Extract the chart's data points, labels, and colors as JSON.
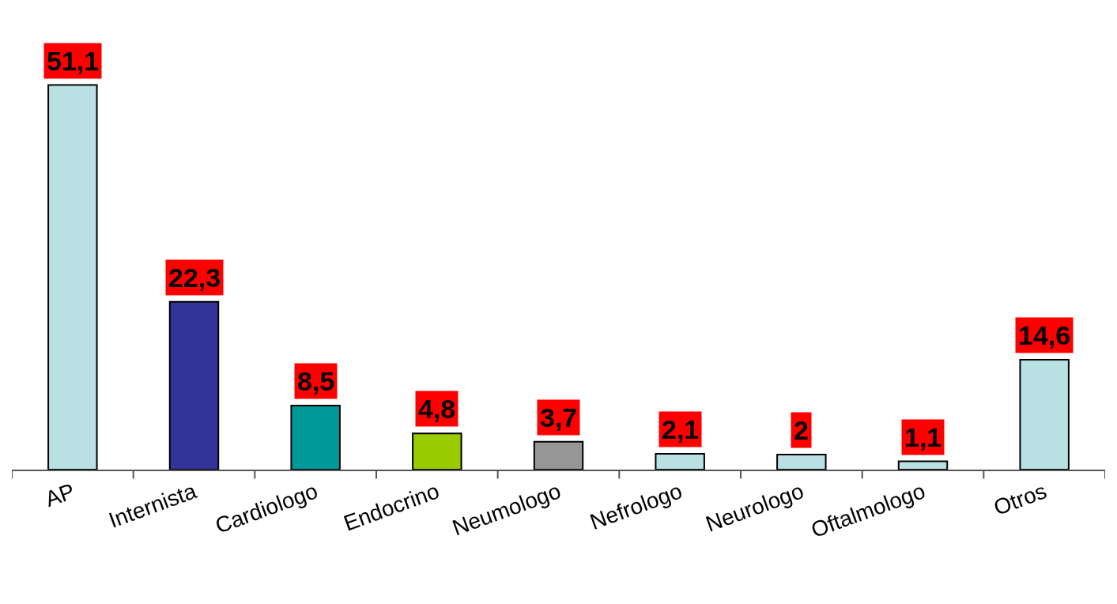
{
  "chart_data": {
    "type": "bar",
    "categories": [
      "AP",
      "Internista",
      "Cardiologo",
      "Endocrino",
      "Neumologo",
      "Nefrologo",
      "Neurologo",
      "Oftalmologo",
      "Otros"
    ],
    "values": [
      51.1,
      22.3,
      8.5,
      4.8,
      3.7,
      2.1,
      2,
      1.1,
      14.6
    ],
    "colors": [
      "#b9e0e3",
      "#333399",
      "#009999",
      "#99cc00",
      "#969696",
      "#b9e0e3",
      "#b9e0e3",
      "#b9e0e3",
      "#b9e0e3"
    ],
    "value_labels": [
      "51,1",
      "22,3",
      "8,5",
      "4,8",
      "3,7",
      "2,1",
      "2",
      "1,1",
      "14,6"
    ],
    "legend": false
  }
}
